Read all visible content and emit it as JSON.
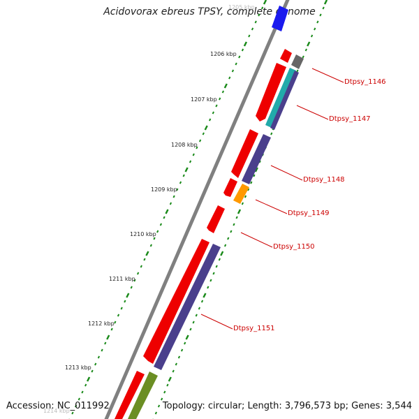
{
  "title": "Acidovorax ebreus TPSY, complete genome",
  "footer": {
    "accession": "Accession: NC_011992",
    "summary": "Topology: circular; Length: 3,796,573 bp; Genes: 3,544"
  },
  "ticks": [
    {
      "label": "1205 kbp",
      "faded": true
    },
    {
      "label": "1206 kbp"
    },
    {
      "label": "1207 kbp"
    },
    {
      "label": "1208 kbp"
    },
    {
      "label": "1209 kbp"
    },
    {
      "label": "1210 kbp"
    },
    {
      "label": "1211 kbp"
    },
    {
      "label": "1212 kbp"
    },
    {
      "label": "1213 kbp"
    },
    {
      "label": "1214 kbp",
      "faded": true
    }
  ],
  "gene_labels": [
    "Dtpsy_1146",
    "Dtpsy_1147",
    "Dtpsy_1148",
    "Dtpsy_1149",
    "Dtpsy_1150",
    "Dtpsy_1151"
  ],
  "colors": {
    "cds": "#ee0000",
    "blue_feature": "#1a1aee",
    "purple_feature": "#4a3f8c",
    "cyan_feature": "#22aaaa",
    "gray_feature": "#666666",
    "orange_feature": "#ff9900",
    "olive_feature": "#6b8e23",
    "dots": "#1a8a1a",
    "backbone": "#808080",
    "label": "#cc0000"
  }
}
